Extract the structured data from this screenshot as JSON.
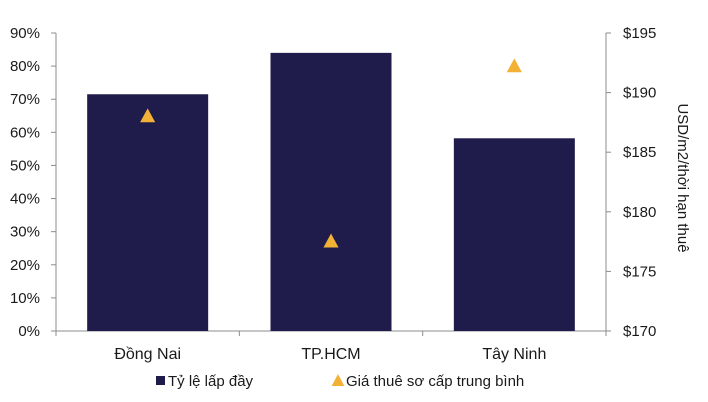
{
  "chart_data": {
    "type": "bar",
    "categories": [
      "Đồng Nai",
      "TP.HCM",
      "Tây Ninh"
    ],
    "series": [
      {
        "name": "Tỷ lệ lấp đầy",
        "type": "bar",
        "axis": "left",
        "values": [
          0.715,
          0.84,
          0.582
        ],
        "color": "#1f1b4b"
      },
      {
        "name": "Giá thuê sơ cấp trung bình",
        "type": "scatter",
        "marker": "triangle",
        "axis": "right",
        "values": [
          188,
          177.5,
          192.2
        ],
        "color": "#f2b134"
      }
    ],
    "y_left": {
      "ticks": [
        "0%",
        "10%",
        "20%",
        "30%",
        "40%",
        "50%",
        "60%",
        "70%",
        "80%",
        "90%"
      ],
      "range": [
        0,
        0.9
      ]
    },
    "y_right": {
      "label": "USD/m2/thời hạn thuê",
      "ticks": [
        "$170",
        "$175",
        "$180",
        "$185",
        "$190",
        "$195"
      ],
      "range": [
        170,
        195
      ]
    },
    "legend": "bottom",
    "grid": false
  }
}
